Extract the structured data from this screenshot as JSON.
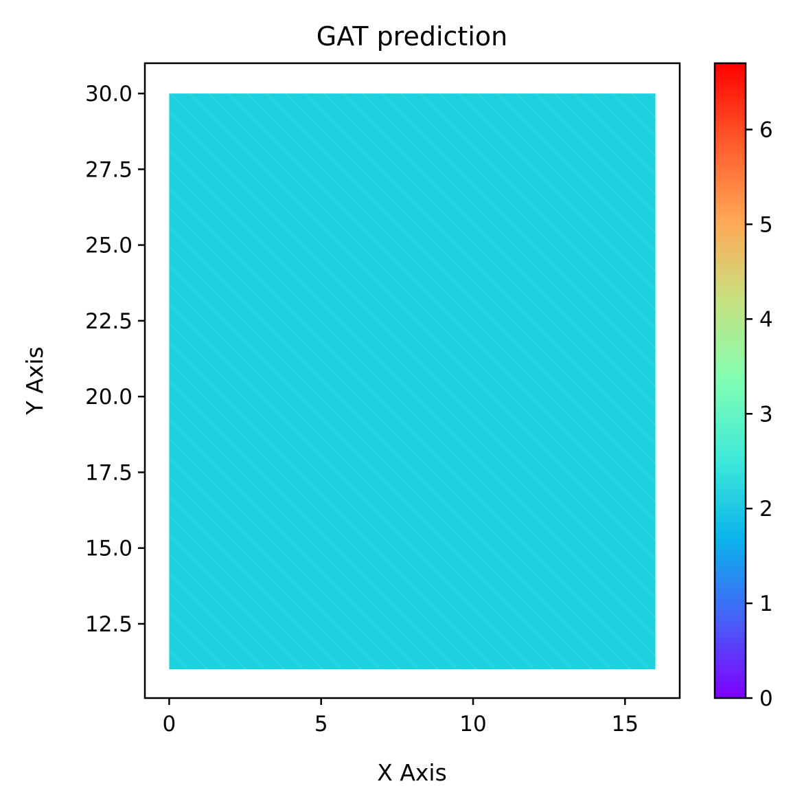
{
  "chart_data": {
    "type": "heatmap",
    "title": "GAT prediction",
    "xlabel": "X Axis",
    "ylabel": "Y Axis",
    "xlim": [
      -0.8,
      16.8
    ],
    "ylim": [
      10.05,
      31.0
    ],
    "x_ticks": [
      0,
      5,
      10,
      15
    ],
    "x_tick_labels": [
      "0",
      "5",
      "10",
      "15"
    ],
    "y_ticks": [
      12.5,
      15.0,
      17.5,
      20.0,
      22.5,
      25.0,
      27.5,
      30.0
    ],
    "y_tick_labels": [
      "12.5",
      "15.0",
      "17.5",
      "20.0",
      "22.5",
      "25.0",
      "27.5",
      "30.0"
    ],
    "data_extent": {
      "x": [
        0,
        16
      ],
      "y": [
        11,
        30
      ]
    },
    "value": 2.15,
    "fill_color": "#1ed1df",
    "colormap": "rainbow",
    "colorbar": {
      "range": [
        0,
        6.7
      ],
      "ticks": [
        0,
        1,
        2,
        3,
        4,
        5,
        6
      ],
      "tick_labels": [
        "0",
        "1",
        "2",
        "3",
        "4",
        "5",
        "6"
      ],
      "colors": [
        "#7f00ff",
        "#4662f8",
        "#0ab3eb",
        "#3fe9d9",
        "#80feb2",
        "#c7e281",
        "#ffa856",
        "#ff5b2b",
        "#ff0000"
      ]
    },
    "grid": false,
    "legend": "none"
  }
}
